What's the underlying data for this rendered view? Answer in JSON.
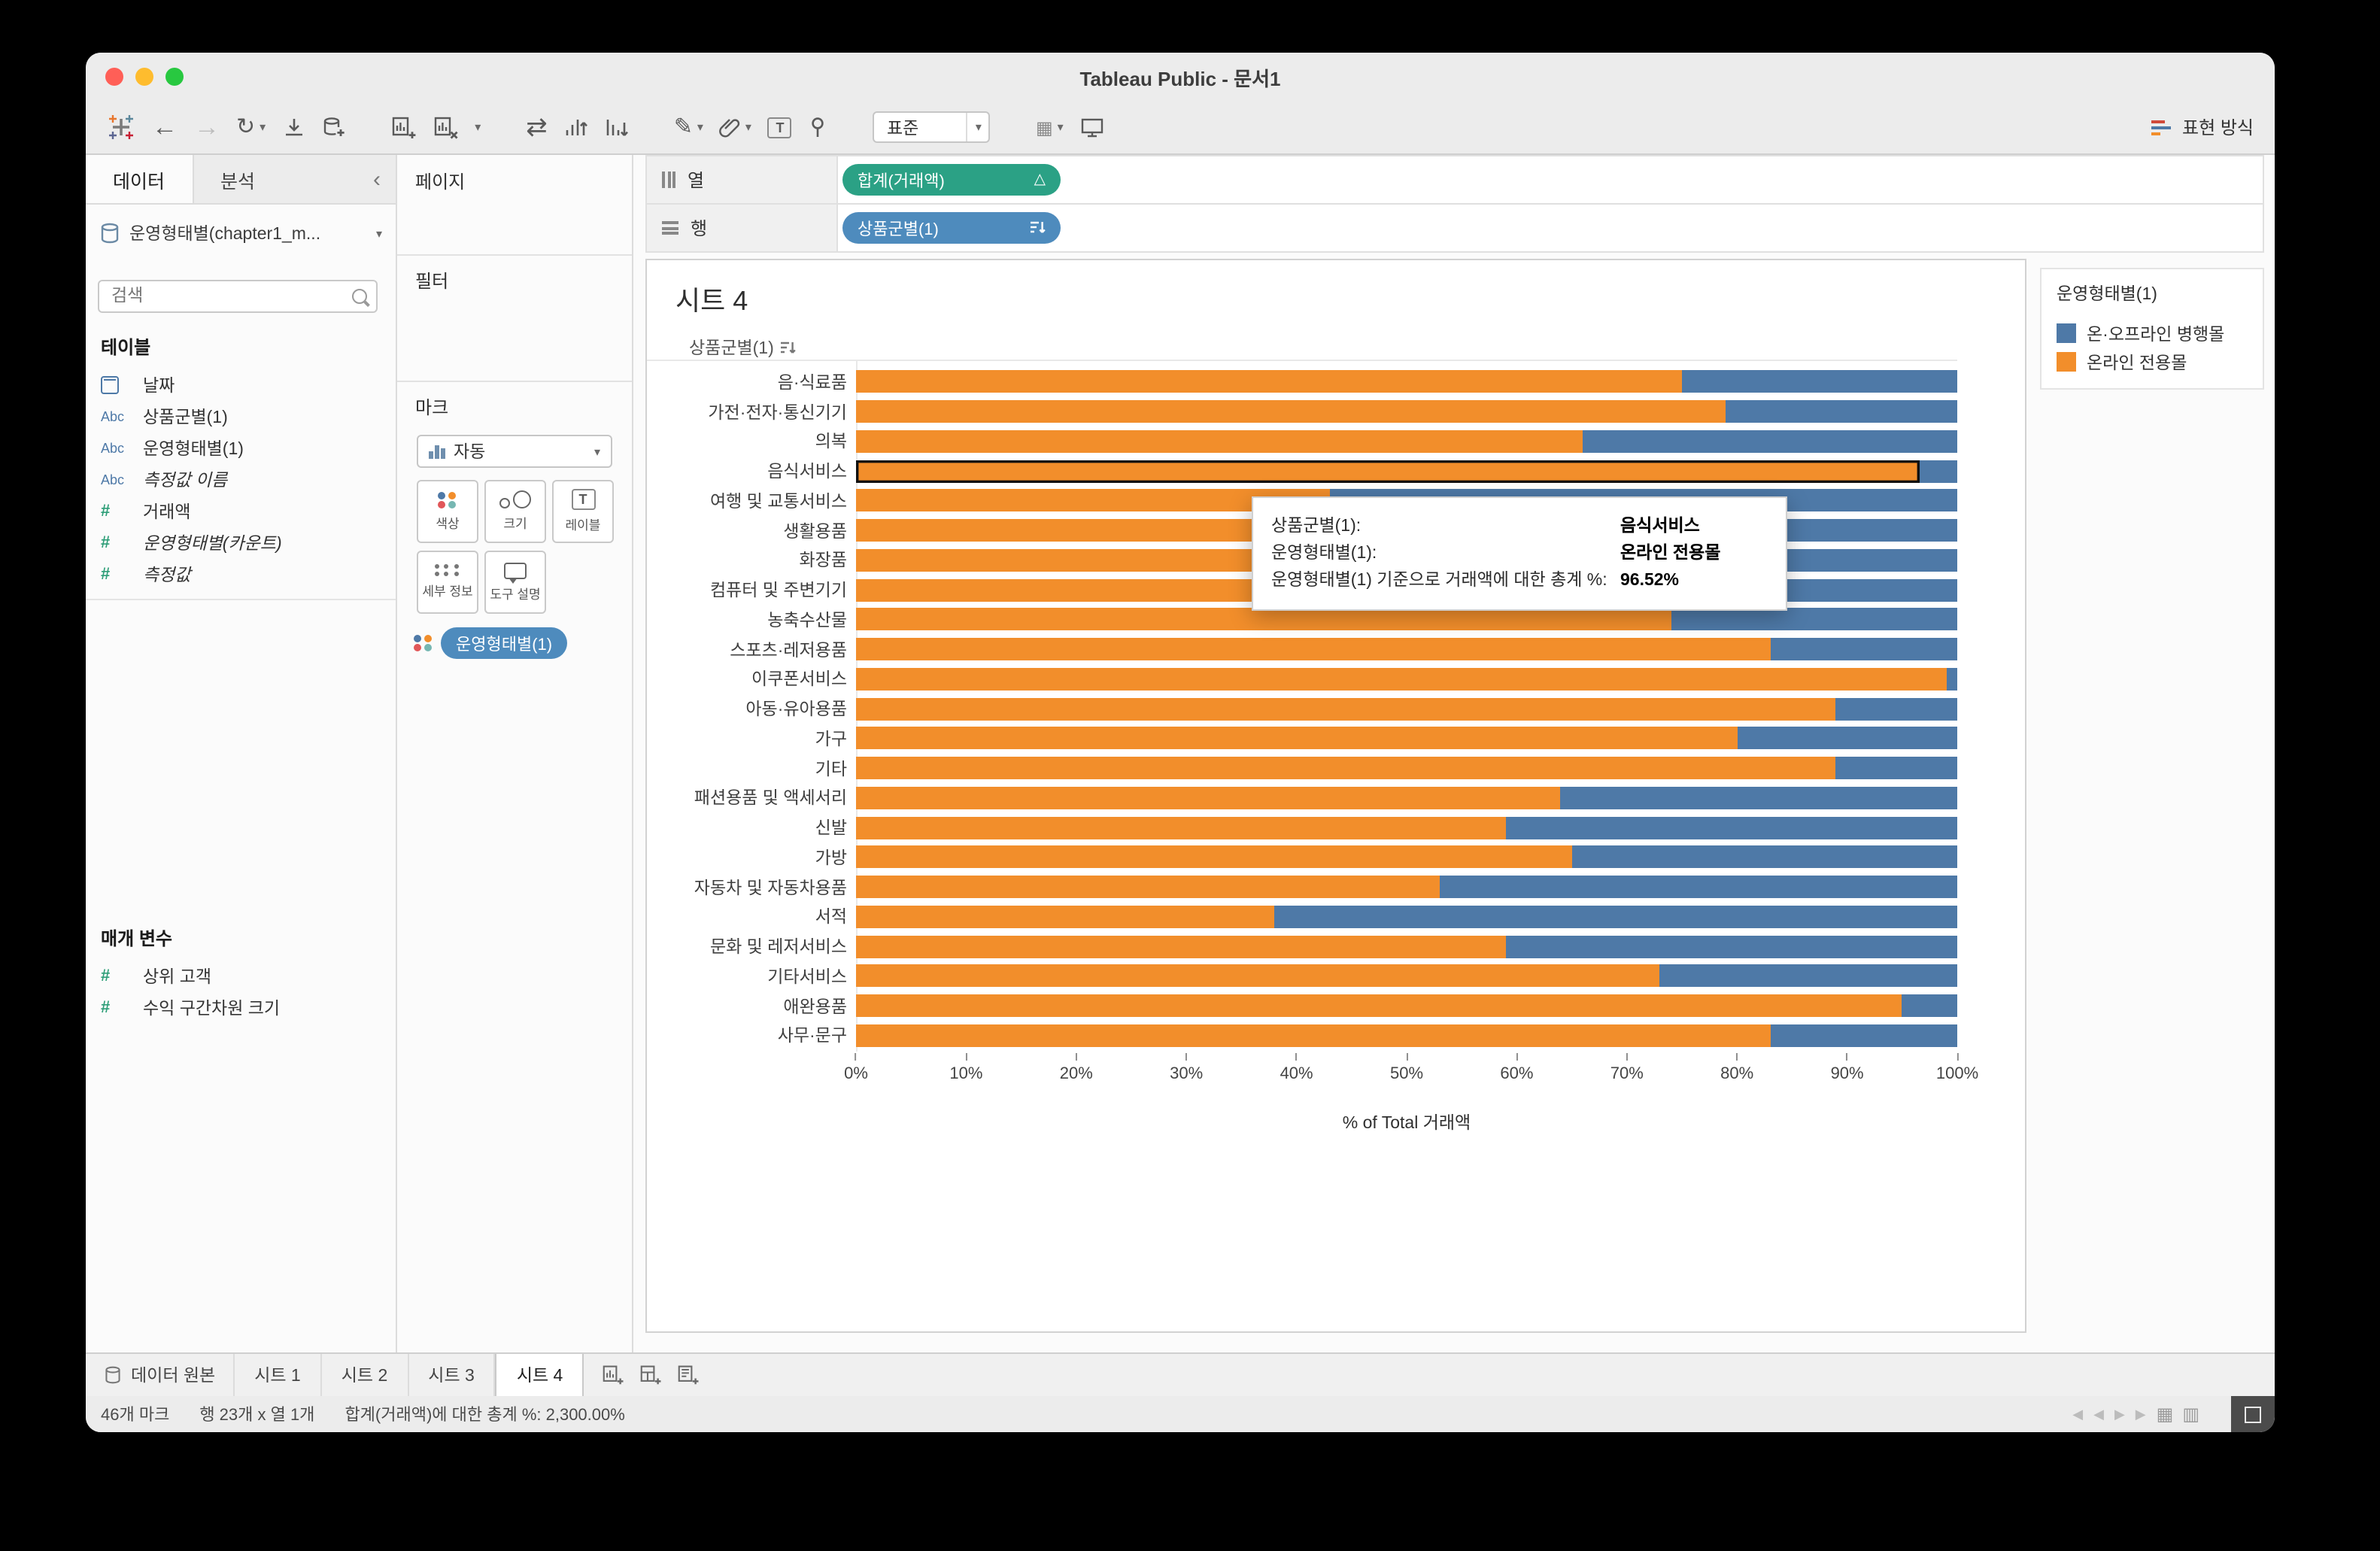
{
  "window": {
    "title": "Tableau Public - 문서1"
  },
  "toolbar": {
    "fit_label": "표준",
    "show_me_label": "표현 방식"
  },
  "icons": {
    "back": "←",
    "forward": "→",
    "undo": "↻",
    "caret": "▾",
    "collapse": "‹",
    "swap": "⇄",
    "highlighter": "✎",
    "grid": "▦",
    "grid2": "▥",
    "delta": "△",
    "text": "T",
    "nav_first": "◀",
    "nav_prev": "◀",
    "nav_next": "▶",
    "nav_last": "▶"
  },
  "sidebar": {
    "tab_data": "데이터",
    "tab_analytics": "분석",
    "datasource": "운영형태별(chapter1_m...",
    "search_placeholder": "검색",
    "tables_label": "테이블",
    "fields": [
      {
        "icon": "calendar",
        "label": "날짜"
      },
      {
        "icon": "Abc",
        "label": "상품군별(1)"
      },
      {
        "icon": "Abc",
        "label": "운영형태별(1)"
      },
      {
        "icon": "Abc",
        "label": "측정값 이름"
      },
      {
        "icon": "#",
        "label": "거래액"
      },
      {
        "icon": "#",
        "label": "운영형태별(카운트)"
      },
      {
        "icon": "#",
        "label": "측정값"
      }
    ],
    "parameters_label": "매개 변수",
    "parameters": [
      {
        "icon": "#",
        "label": "상위 고객"
      },
      {
        "icon": "#",
        "label": "수익 구간차원 크기"
      }
    ]
  },
  "cards": {
    "pages_label": "페이지",
    "filters_label": "필터",
    "marks_label": "마크",
    "mark_type_label": "자동",
    "buttons": [
      {
        "label": "색상"
      },
      {
        "label": "크기"
      },
      {
        "label": "레이블"
      },
      {
        "label": "세부 정보"
      },
      {
        "label": "도구 설명"
      }
    ],
    "mark_pill": "운영형태별(1)"
  },
  "shelves": {
    "columns_label": "열",
    "columns_pill": "합계(거래액)",
    "rows_label": "행",
    "rows_pill": "상품군별(1)"
  },
  "sheet": {
    "title": "시트 4",
    "row_field_header": "상품군별(1)"
  },
  "legend": {
    "title": "운영형태별(1)",
    "items": [
      {
        "label": "온·오프라인 병행몰",
        "color": "#4e79a7"
      },
      {
        "label": "온라인 전용몰",
        "color": "#f28e2b"
      }
    ]
  },
  "tooltip": {
    "rows": [
      {
        "label": "상품군별(1):",
        "value": "음식서비스"
      },
      {
        "label": "운영형태별(1):",
        "value": "온라인 전용몰"
      }
    ],
    "total_label": "운영형태별(1) 기준으로 거래액에 대한 총계 %:",
    "total_value": "96.52%"
  },
  "tabs": {
    "datasource": "데이터 원본",
    "sheet1": "시트 1",
    "sheet2": "시트 2",
    "sheet3": "시트 3",
    "sheet4": "시트 4"
  },
  "statusbar": {
    "marks": "46개 마크",
    "dims": "행 23개 x 열 1개",
    "total": "합계(거래액)에 대한 총계 %: 2,300.00%"
  },
  "chart_data": {
    "type": "bar",
    "stacked": true,
    "percent": true,
    "orientation": "horizontal",
    "title": "시트 4",
    "xlabel": "% of Total 거래액",
    "xlim": [
      0,
      100
    ],
    "grid": false,
    "legend_position": "right",
    "ticks": [
      "0%",
      "10%",
      "20%",
      "30%",
      "40%",
      "50%",
      "60%",
      "70%",
      "80%",
      "90%",
      "100%"
    ],
    "categories": [
      "음·식료품",
      "가전·전자·통신기기",
      "의복",
      "음식서비스",
      "여행 및 교통서비스",
      "생활용품",
      "화장품",
      "컴퓨터 및 주변기기",
      "농축수산물",
      "스포츠·레저용품",
      "이쿠폰서비스",
      "아동·유아용품",
      "가구",
      "기타",
      "패션용품 및 액세서리",
      "신발",
      "가방",
      "자동차 및 자동차용품",
      "서적",
      "문화 및 레저서비스",
      "기타서비스",
      "애완용품",
      "사무·문구"
    ],
    "series": [
      {
        "name": "온라인 전용몰",
        "color": "#f28e2b",
        "values": [
          75,
          79,
          66,
          96.52,
          43,
          77,
          75,
          78,
          74,
          83,
          99,
          89,
          80,
          89,
          64,
          59,
          65,
          53,
          38,
          59,
          73,
          95,
          83
        ]
      },
      {
        "name": "온·오프라인 병행몰",
        "color": "#4e79a7",
        "values": [
          25,
          21,
          34,
          3.48,
          57,
          23,
          25,
          22,
          26,
          17,
          1,
          11,
          20,
          11,
          36,
          41,
          35,
          47,
          62,
          41,
          27,
          5,
          17
        ]
      }
    ],
    "selected_category": "음식서비스"
  }
}
